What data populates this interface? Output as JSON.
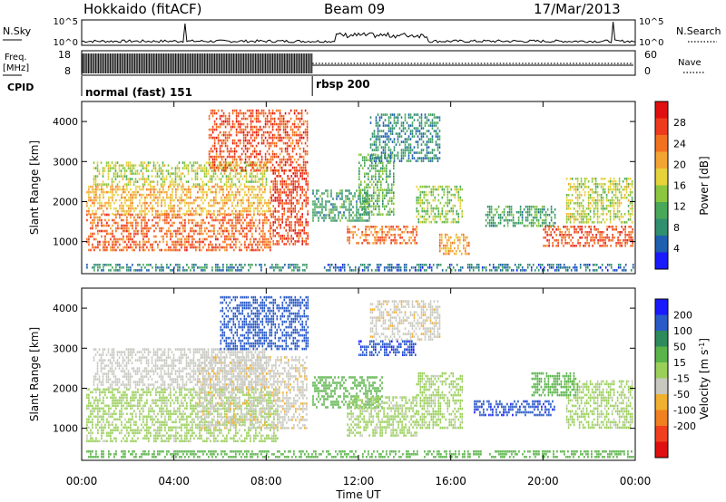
{
  "header": {
    "station": "Hokkaido (fitACF)",
    "beam": "Beam 09",
    "date": "17/Mar/2013"
  },
  "top_panels": {
    "nsky_label": "N.Sky",
    "nsky_ticks": [
      "10^5",
      "10^0"
    ],
    "nsearch_label": "N.Search",
    "nsearch_ticks": [
      "10^5",
      "10^0"
    ],
    "freq_label": "Freq.",
    "freq_unit": "[MHz]",
    "freq_ticks": [
      "18",
      "8"
    ],
    "nave_label": "Nave",
    "nave_ticks": [
      "60",
      "0"
    ],
    "cpid_label": "CPID",
    "cpid_segments": [
      {
        "start_hour": 0,
        "end_hour": 10,
        "label": "normal (fast) 151"
      },
      {
        "start_hour": 10,
        "end_hour": 24,
        "label": "rbsp 200"
      }
    ]
  },
  "axes": {
    "xlabel": "Time UT",
    "x_ticks": [
      "00:00",
      "04:00",
      "08:00",
      "12:00",
      "16:00",
      "20:00",
      "00:00"
    ],
    "ylabel_top": "Slant Range [km]",
    "ylabel_bottom": "Slant Range [km]",
    "y_ticks": [
      "1000",
      "2000",
      "3000",
      "4000"
    ]
  },
  "colorbars": {
    "power": {
      "label": "Power [dB]",
      "ticks": [
        "4",
        "8",
        "12",
        "16",
        "20",
        "24",
        "28"
      ],
      "colors": [
        "#1a1aff",
        "#1f5fb0",
        "#2f8f6f",
        "#4aa85a",
        "#8cc63f",
        "#e6d23a",
        "#f3a533",
        "#f27221",
        "#ee3b1d",
        "#e01010"
      ]
    },
    "velocity": {
      "label": "Velocity [m s",
      "label_sup": "-1",
      "label_end": "]",
      "ticks": [
        "200",
        "100",
        "50",
        "15",
        "-15",
        "-50",
        "-100",
        "-200"
      ],
      "colors": [
        "#1a1aff",
        "#2a5ac8",
        "#2e8a5a",
        "#5ab44a",
        "#9ad05a",
        "#c8c8c0",
        "#f0b030",
        "#f08020",
        "#f04020",
        "#e01010"
      ]
    }
  },
  "chart_data": [
    {
      "type": "heatmap",
      "panel": "power",
      "x_range_hours": [
        0,
        24
      ],
      "y_range_km": [
        200,
        4500
      ],
      "ylabel": "Slant Range [km]",
      "colorbar_label": "Power [dB]",
      "regions": [
        {
          "t0": 0.2,
          "t1": 8.2,
          "r0": 800,
          "r1": 1700,
          "p": 25
        },
        {
          "t0": 0.2,
          "t1": 8.2,
          "r0": 1700,
          "r1": 2400,
          "p": 20
        },
        {
          "t0": 0.5,
          "t1": 8.0,
          "r0": 2400,
          "r1": 3000,
          "p": 16
        },
        {
          "t0": 5.5,
          "t1": 9.8,
          "r0": 2800,
          "r1": 4300,
          "p": 26
        },
        {
          "t0": 8.2,
          "t1": 9.8,
          "r0": 900,
          "r1": 2800,
          "p": 27
        },
        {
          "t0": 0.2,
          "t1": 9.8,
          "r0": 250,
          "r1": 450,
          "p": 8
        },
        {
          "t0": 10.0,
          "t1": 12.5,
          "r0": 1500,
          "r1": 2300,
          "p": 10
        },
        {
          "t0": 11.5,
          "t1": 14.5,
          "r0": 950,
          "r1": 1400,
          "p": 24
        },
        {
          "t0": 12.0,
          "t1": 13.5,
          "r0": 1700,
          "r1": 3200,
          "p": 12
        },
        {
          "t0": 12.5,
          "t1": 15.5,
          "r0": 3000,
          "r1": 4200,
          "p": 8
        },
        {
          "t0": 14.5,
          "t1": 16.5,
          "r0": 1500,
          "r1": 2400,
          "p": 14
        },
        {
          "t0": 15.5,
          "t1": 16.8,
          "r0": 700,
          "r1": 1200,
          "p": 22
        },
        {
          "t0": 17.5,
          "t1": 20.5,
          "r0": 1400,
          "r1": 1900,
          "p": 10
        },
        {
          "t0": 20.0,
          "t1": 23.9,
          "r0": 900,
          "r1": 1400,
          "p": 26
        },
        {
          "t0": 21.0,
          "t1": 23.9,
          "r0": 1500,
          "r1": 2600,
          "p": 16
        },
        {
          "t0": 10.5,
          "t1": 23.9,
          "r0": 250,
          "r1": 450,
          "p": 6
        }
      ]
    },
    {
      "type": "heatmap",
      "panel": "velocity",
      "x_range_hours": [
        0,
        24
      ],
      "y_range_km": [
        200,
        4500
      ],
      "ylabel": "Slant Range [km]",
      "colorbar_label": "Velocity [m s-1]",
      "regions": [
        {
          "t0": 0.2,
          "t1": 8.5,
          "r0": 700,
          "r1": 2000,
          "v": -5
        },
        {
          "t0": 0.5,
          "t1": 8.0,
          "r0": 2000,
          "r1": 3000,
          "v": -30
        },
        {
          "t0": 5.0,
          "t1": 9.8,
          "r0": 1000,
          "r1": 2800,
          "v": -40
        },
        {
          "t0": 6.0,
          "t1": 9.8,
          "r0": 3000,
          "r1": 4300,
          "v": 180
        },
        {
          "t0": 10.0,
          "t1": 13.0,
          "r0": 1500,
          "r1": 2300,
          "v": 30
        },
        {
          "t0": 11.5,
          "t1": 14.5,
          "r0": 800,
          "r1": 1800,
          "v": -5
        },
        {
          "t0": 12.0,
          "t1": 14.5,
          "r0": 2800,
          "r1": 3200,
          "v": 190
        },
        {
          "t0": 12.5,
          "t1": 15.5,
          "r0": 3200,
          "r1": 4200,
          "v": -40
        },
        {
          "t0": 14.5,
          "t1": 16.5,
          "r0": 1000,
          "r1": 2400,
          "v": -5
        },
        {
          "t0": 17.0,
          "t1": 20.5,
          "r0": 1300,
          "r1": 1700,
          "v": 190
        },
        {
          "t0": 21.0,
          "t1": 23.9,
          "r0": 1000,
          "r1": 2200,
          "v": -5
        },
        {
          "t0": 19.5,
          "t1": 21.5,
          "r0": 1800,
          "r1": 2400,
          "v": 30
        },
        {
          "t0": 0.2,
          "t1": 23.9,
          "r0": 250,
          "r1": 450,
          "v": 30
        }
      ]
    }
  ]
}
